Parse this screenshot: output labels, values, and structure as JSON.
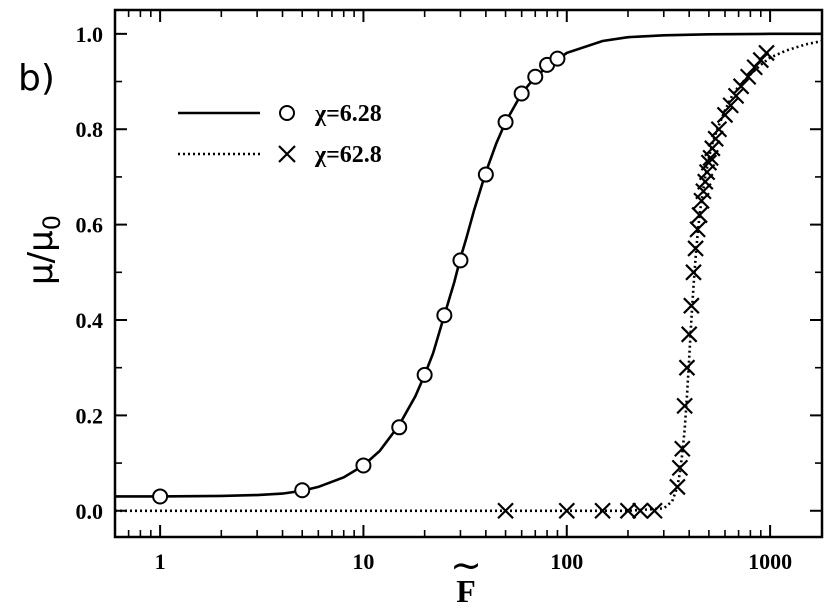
{
  "chart_data": {
    "type": "line",
    "panel_label": "b)",
    "xlabel": "F",
    "xlabel_accent": "~",
    "ylabel_main": "μ/μ",
    "ylabel_sub": "0",
    "xscale": "log",
    "xlim": [
      0.6,
      1800
    ],
    "ylim": [
      -0.055,
      1.05
    ],
    "xticks": [
      1,
      10,
      100,
      1000
    ],
    "xtick_labels": [
      "1",
      "10",
      "100",
      "1000"
    ],
    "yticks": [
      0.0,
      0.2,
      0.4,
      0.6,
      0.8,
      1.0
    ],
    "ytick_labels": [
      "0.0",
      "0.2",
      "0.4",
      "0.6",
      "0.8",
      "1.0"
    ],
    "grid": false,
    "legend_position": "top-left",
    "series": [
      {
        "name": "χ=6.28",
        "line_style": "solid",
        "marker": "circle",
        "curve_x": [
          0.6,
          1,
          2,
          3,
          4,
          5,
          6,
          8,
          10,
          12,
          15,
          18,
          20,
          22,
          25,
          28,
          30,
          32,
          35,
          40,
          45,
          50,
          60,
          70,
          80,
          100,
          150,
          200,
          300,
          500,
          1000,
          1800
        ],
        "curve_y": [
          0.03,
          0.03,
          0.031,
          0.033,
          0.036,
          0.042,
          0.05,
          0.07,
          0.095,
          0.125,
          0.18,
          0.24,
          0.285,
          0.33,
          0.41,
          0.48,
          0.53,
          0.57,
          0.63,
          0.71,
          0.77,
          0.815,
          0.875,
          0.91,
          0.93,
          0.96,
          0.985,
          0.993,
          0.997,
          0.999,
          1.0,
          1.0
        ],
        "points_x": [
          1,
          5,
          10,
          15,
          20,
          25,
          30,
          40,
          50,
          60,
          70,
          80,
          90
        ],
        "points_y": [
          0.03,
          0.043,
          0.095,
          0.175,
          0.285,
          0.41,
          0.525,
          0.705,
          0.815,
          0.875,
          0.91,
          0.935,
          0.948
        ]
      },
      {
        "name": "χ=62.8",
        "line_style": "dotted",
        "marker": "x",
        "curve_x": [
          0.6,
          100,
          200,
          300,
          330,
          350,
          360,
          370,
          380,
          390,
          400,
          410,
          420,
          430,
          440,
          450,
          460,
          480,
          500,
          520,
          550,
          600,
          650,
          700,
          800,
          900,
          1000,
          1200,
          1500,
          1800
        ],
        "curve_y": [
          0.0,
          0.0,
          0.0,
          0.005,
          0.02,
          0.05,
          0.08,
          0.12,
          0.17,
          0.24,
          0.32,
          0.4,
          0.47,
          0.53,
          0.58,
          0.62,
          0.65,
          0.7,
          0.74,
          0.77,
          0.8,
          0.84,
          0.87,
          0.89,
          0.915,
          0.935,
          0.95,
          0.965,
          0.978,
          0.985
        ],
        "points_x": [
          50,
          100,
          150,
          200,
          230,
          270,
          350,
          360,
          370,
          380,
          390,
          400,
          410,
          420,
          430,
          440,
          450,
          460,
          470,
          480,
          490,
          500,
          510,
          520,
          540,
          560,
          600,
          640,
          680,
          720,
          780,
          840,
          900,
          960
        ],
        "points_y": [
          0.0,
          0.0,
          0.0,
          0.0,
          0.0,
          0.0,
          0.05,
          0.09,
          0.13,
          0.22,
          0.3,
          0.37,
          0.43,
          0.5,
          0.55,
          0.59,
          0.62,
          0.65,
          0.67,
          0.69,
          0.71,
          0.73,
          0.74,
          0.76,
          0.78,
          0.8,
          0.83,
          0.85,
          0.87,
          0.89,
          0.91,
          0.93,
          0.945,
          0.96
        ]
      }
    ]
  }
}
